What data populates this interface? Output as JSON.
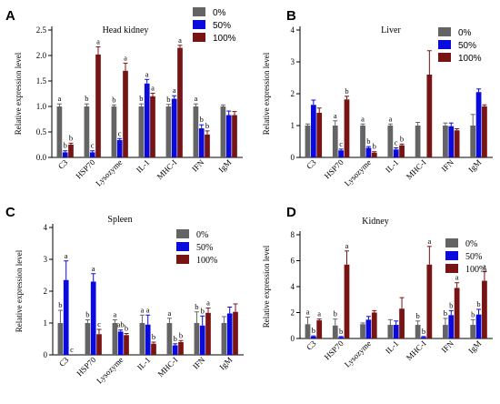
{
  "legend": {
    "items": [
      "0%",
      "50%",
      "100%"
    ]
  },
  "colors": {
    "c0": "#646464",
    "c50": "#0a0adc",
    "c100": "#781414"
  },
  "chart_data": [
    {
      "letter": "A",
      "title": "Head kidney",
      "type": "bar",
      "ylabel": "Relative expression level",
      "ylim": [
        0,
        2.5
      ],
      "yticks": [
        "0.0",
        "0.5",
        "1.0",
        "1.5",
        "2.0",
        "2.5"
      ],
      "categories": [
        "C3",
        "HSP70",
        "Lysozyme",
        "IL-1",
        "MHC-I",
        "IFN",
        "IgM"
      ],
      "series": [
        {
          "name": "0%",
          "values": [
            1.0,
            1.0,
            1.0,
            1.0,
            1.0,
            1.0,
            1.0
          ],
          "errors": [
            0.05,
            0.05,
            0.03,
            0.05,
            0.04,
            0.05,
            0.03
          ],
          "labels": [
            "a",
            "b",
            "b",
            "b",
            "b",
            "a",
            ""
          ]
        },
        {
          "name": "50%",
          "values": [
            0.1,
            0.1,
            0.34,
            1.45,
            1.15,
            0.57,
            0.83
          ],
          "errors": [
            0.03,
            0.03,
            0.03,
            0.08,
            0.06,
            0.07,
            0.08
          ],
          "labels": [
            "b",
            "c",
            "c",
            "a",
            "a",
            "b",
            ""
          ]
        },
        {
          "name": "100%",
          "values": [
            0.25,
            2.02,
            1.7,
            1.2,
            2.15,
            0.45,
            0.83
          ],
          "errors": [
            0.03,
            0.15,
            0.15,
            0.06,
            0.05,
            0.07,
            0.07
          ],
          "labels": [
            "b",
            "a",
            "a",
            "a",
            "a",
            "b",
            ""
          ]
        }
      ]
    },
    {
      "letter": "B",
      "title": "Liver",
      "type": "bar",
      "ylabel": "Relative expression level",
      "ylim": [
        0,
        4
      ],
      "yticks": [
        "0",
        "1",
        "2",
        "3",
        "4"
      ],
      "categories": [
        "C3",
        "HSP70",
        "Lysozyme",
        "IL-1",
        "MHC-I",
        "IFN",
        "IgM"
      ],
      "series": [
        {
          "name": "0%",
          "values": [
            1.0,
            1.0,
            1.0,
            1.0,
            1.0,
            1.0,
            1.0
          ],
          "errors": [
            0.05,
            0.15,
            0.05,
            0.05,
            0.1,
            0.08,
            0.35
          ],
          "labels": [
            "",
            "a",
            "a",
            "a",
            "",
            "",
            ""
          ]
        },
        {
          "name": "50%",
          "values": [
            1.65,
            0.22,
            0.3,
            0.25,
            0.0,
            0.98,
            2.05
          ],
          "errors": [
            0.15,
            0.04,
            0.04,
            0.05,
            0.0,
            0.1,
            0.1
          ],
          "labels": [
            "",
            "c",
            "b",
            "c",
            "",
            "",
            ""
          ]
        },
        {
          "name": "100%",
          "values": [
            1.4,
            1.82,
            0.15,
            0.38,
            2.6,
            0.85,
            1.6
          ],
          "errors": [
            0.15,
            0.1,
            0.03,
            0.04,
            0.75,
            0.05,
            0.05
          ],
          "labels": [
            "",
            "b",
            "b",
            "b",
            "",
            "",
            ""
          ]
        }
      ]
    },
    {
      "letter": "C",
      "title": "Spleen",
      "type": "bar",
      "ylabel": "Relative expression level",
      "ylim": [
        0,
        4
      ],
      "yticks": [
        "0",
        "1",
        "2",
        "3",
        "4"
      ],
      "categories": [
        "C3",
        "HSP70",
        "Lysozyme",
        "IL-1",
        "MHC-I",
        "IFN",
        "IgM"
      ],
      "series": [
        {
          "name": "0%",
          "values": [
            1.0,
            1.0,
            1.0,
            1.0,
            1.0,
            1.0,
            1.0
          ],
          "errors": [
            0.4,
            0.1,
            0.1,
            0.25,
            0.15,
            0.35,
            0.2
          ],
          "labels": [
            "b",
            "b",
            "a",
            "a",
            "a",
            "b",
            ""
          ]
        },
        {
          "name": "50%",
          "values": [
            2.35,
            2.3,
            0.73,
            0.95,
            0.3,
            0.92,
            1.3
          ],
          "errors": [
            0.6,
            0.25,
            0.05,
            0.3,
            0.05,
            0.3,
            0.2
          ],
          "labels": [
            "a",
            "a",
            "ab",
            "a",
            "b",
            "b",
            ""
          ]
        },
        {
          "name": "100%",
          "values": [
            0.0,
            0.65,
            0.62,
            0.35,
            0.4,
            1.32,
            1.35
          ],
          "errors": [
            0.0,
            0.15,
            0.05,
            0.05,
            0.05,
            0.15,
            0.25
          ],
          "labels": [
            "c",
            "c",
            "b",
            "b",
            "b",
            "a",
            ""
          ]
        }
      ]
    },
    {
      "letter": "D",
      "title": "Kidney",
      "type": "bar",
      "ylabel": "Relative expression level",
      "ylim": [
        0,
        8
      ],
      "yticks": [
        "0",
        "2",
        "4",
        "6",
        "8"
      ],
      "categories": [
        "C3",
        "HSP70",
        "Lysozyme",
        "IL-1",
        "MHC-I",
        "IFN",
        "IgM"
      ],
      "series": [
        {
          "name": "0%",
          "values": [
            1.1,
            1.0,
            1.1,
            1.05,
            1.05,
            1.05,
            1.05
          ],
          "errors": [
            0.55,
            0.5,
            0.1,
            0.4,
            0.3,
            0.5,
            0.4
          ],
          "labels": [
            "a",
            "b",
            "",
            "",
            "b",
            "b",
            "b"
          ]
        },
        {
          "name": "50%",
          "values": [
            0.15,
            0.1,
            1.45,
            1.05,
            0.1,
            1.8,
            1.85
          ],
          "errors": [
            0.05,
            0.05,
            0.25,
            0.3,
            0.05,
            0.35,
            0.4
          ],
          "labels": [
            "b",
            "b",
            "",
            "",
            "b",
            "b",
            "b"
          ]
        },
        {
          "name": "100%",
          "values": [
            1.4,
            5.7,
            2.0,
            2.3,
            5.7,
            3.9,
            4.45
          ],
          "errors": [
            0.1,
            1.05,
            0.15,
            0.85,
            1.4,
            0.4,
            0.7
          ],
          "labels": [
            "a",
            "a",
            "",
            "",
            "a",
            "a",
            "a"
          ]
        }
      ]
    }
  ]
}
